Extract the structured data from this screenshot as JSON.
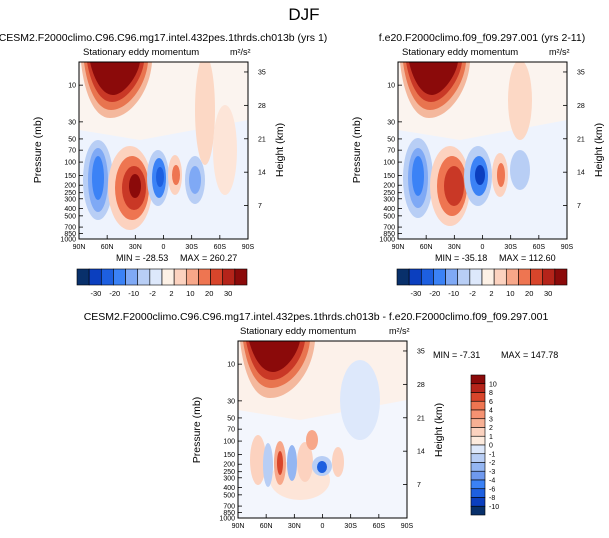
{
  "page_title": "DJF",
  "chart_data": [
    {
      "type": "heatmap",
      "case_title": "CESM2.F2000climo.C96.C96.mg17.intel.432pes.1thrds.ch013b (yrs 1)",
      "subtitle": "Stationary eddy momentum",
      "units": "m²/s²",
      "ylabel": "Pressure (mb)",
      "ylabel_right": "Height (km)",
      "x_ticks": [
        "90N",
        "60N",
        "30N",
        "0",
        "30S",
        "60S",
        "90S"
      ],
      "p_ticks": [
        "10",
        "30",
        "50",
        "70",
        "100",
        "150",
        "200",
        "250",
        "300",
        "400",
        "500",
        "700",
        "850",
        "1000"
      ],
      "h_ticks": [
        "35",
        "28",
        "21",
        "14",
        "7"
      ],
      "min_label": "MIN = -28.53",
      "max_label": "MAX = 260.27",
      "min": -28.53,
      "max": 260.27
    },
    {
      "type": "heatmap",
      "case_title": "f.e20.F2000climo.f09_f09.297.001 (yrs 2-11)",
      "subtitle": "Stationary eddy momentum",
      "units": "m²/s²",
      "ylabel": "Pressure (mb)",
      "ylabel_right": "Height (km)",
      "x_ticks": [
        "90N",
        "60N",
        "30N",
        "0",
        "30S",
        "60S",
        "90S"
      ],
      "p_ticks": [
        "10",
        "30",
        "50",
        "70",
        "100",
        "150",
        "200",
        "250",
        "300",
        "400",
        "500",
        "700",
        "850",
        "1000"
      ],
      "h_ticks": [
        "35",
        "28",
        "21",
        "14",
        "7"
      ],
      "min_label": "MIN = -35.18",
      "max_label": "MAX = 112.60",
      "min": -35.18,
      "max": 112.6
    },
    {
      "type": "heatmap",
      "case_title": "CESM2.F2000climo.C96.C96.mg17.intel.432pes.1thrds.ch013b - f.e20.F2000climo.f09_f09.297.001",
      "subtitle": "Stationary eddy momentum",
      "units": "m²/s²",
      "ylabel": "Pressure (mb)",
      "ylabel_right": "Height (km)",
      "x_ticks": [
        "90N",
        "60N",
        "30N",
        "0",
        "30S",
        "60S",
        "90S"
      ],
      "p_ticks": [
        "10",
        "30",
        "50",
        "70",
        "100",
        "150",
        "200",
        "250",
        "300",
        "400",
        "500",
        "700",
        "850",
        "1000"
      ],
      "h_ticks": [
        "35",
        "28",
        "21",
        "14",
        "7"
      ],
      "min_label": "MIN = -7.31",
      "max_label": "MAX = 147.78",
      "min": -7.31,
      "max": 147.78
    }
  ],
  "colorbar_top": {
    "labels": [
      "-30",
      "-20",
      "-10",
      "-2",
      "2",
      "10",
      "20",
      "30"
    ],
    "colors": [
      "#08306b",
      "#0b3fbf",
      "#1d5fe0",
      "#3b82f6",
      "#7fa9f5",
      "#b8cef5",
      "#dde8fb",
      "#fdf1e6",
      "#fcd2bf",
      "#f7a789",
      "#ee7551",
      "#d8452b",
      "#b5241a",
      "#8b0a0a"
    ]
  },
  "colorbar_diff": {
    "labels": [
      "10",
      "8",
      "6",
      "4",
      "3",
      "2",
      "1",
      "0",
      "-1",
      "-2",
      "-3",
      "-4",
      "-6",
      "-8",
      "-10"
    ],
    "colors": [
      "#8b0a0a",
      "#b5241a",
      "#d8452b",
      "#ee7551",
      "#f59272",
      "#f7b094",
      "#fbd2bf",
      "#fdebde",
      "#dde8fb",
      "#b8cef5",
      "#94b6f2",
      "#6f99ee",
      "#3b82f6",
      "#1d5fe0",
      "#0b3fbf",
      "#08306b"
    ]
  }
}
